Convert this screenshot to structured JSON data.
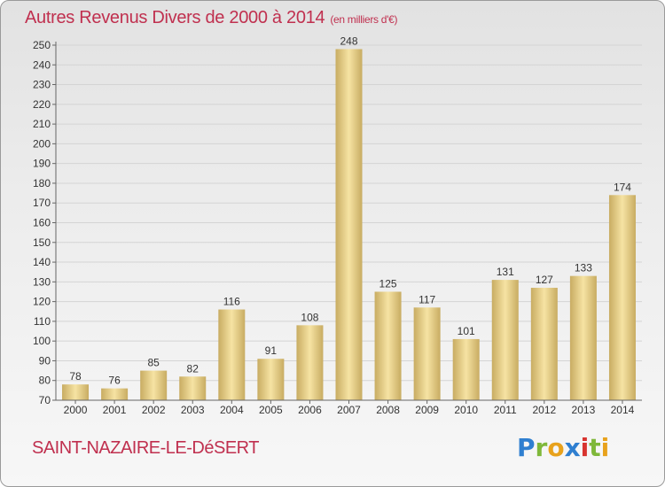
{
  "header": {
    "title": "Autres Revenus Divers de 2000 à 2014",
    "unit": "(en milliers d'€)"
  },
  "footer": {
    "commune": "SAINT-NAZAIRE-LE-DéSERT",
    "logo": "Proxiti"
  },
  "colors": {
    "title": "#c0304f",
    "bar_light": "#f6e3a3",
    "bar_dark": "#c8ac62",
    "grid": "#d4d4d4",
    "axis": "#666666"
  },
  "chart_data": {
    "type": "bar",
    "title": "Autres Revenus Divers de 2000 à 2014",
    "subtitle": "(en milliers d'€)",
    "categories": [
      "2000",
      "2001",
      "2002",
      "2003",
      "2004",
      "2005",
      "2006",
      "2007",
      "2008",
      "2009",
      "2010",
      "2011",
      "2012",
      "2013",
      "2014"
    ],
    "values": [
      78,
      76,
      85,
      82,
      116,
      91,
      108,
      248,
      125,
      117,
      101,
      131,
      127,
      133,
      174
    ],
    "ylim": [
      70,
      250
    ],
    "yticks": [
      70,
      80,
      90,
      100,
      110,
      120,
      130,
      140,
      150,
      160,
      170,
      180,
      190,
      200,
      210,
      220,
      230,
      240,
      250
    ],
    "grid": "horizontal",
    "data_labels": true,
    "legend": "none"
  }
}
